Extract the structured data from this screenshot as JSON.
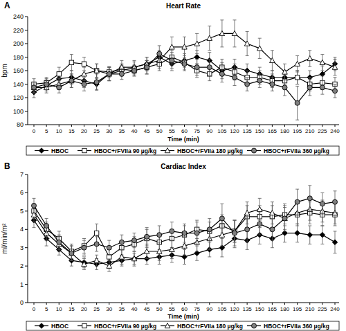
{
  "chart_data": [
    {
      "type": "line",
      "panel_label": "A",
      "title": "Heart Rate",
      "x_label": "Time (min)",
      "y_label": "bpm",
      "categories": [
        "0",
        "5",
        "10",
        "15",
        "20",
        "25",
        "30",
        "35",
        "40",
        "45",
        "50",
        "55",
        "60",
        "75",
        "90",
        "105",
        "120",
        "135",
        "150",
        "165",
        "180",
        "195",
        "210",
        "225",
        "240"
      ],
      "ylim": [
        80,
        240
      ],
      "yticks": [
        80,
        100,
        120,
        140,
        160,
        180,
        200,
        220,
        240
      ],
      "grid": false,
      "legend": "bottom",
      "series": [
        {
          "name": "HBOC",
          "color": "#000000",
          "marker": "diamond",
          "values": [
            128,
            138,
            148,
            150,
            145,
            140,
            155,
            160,
            165,
            170,
            180,
            170,
            175,
            180,
            175,
            160,
            165,
            160,
            155,
            150,
            150,
            150,
            150,
            155,
            170
          ],
          "errors": [
            8,
            8,
            10,
            10,
            10,
            8,
            10,
            8,
            8,
            10,
            10,
            10,
            10,
            10,
            12,
            12,
            12,
            10,
            10,
            10,
            10,
            10,
            10,
            12,
            10
          ]
        },
        {
          "name": "HBOC+rFVIIa 90 µg/kg",
          "color": "#ffffff",
          "marker": "square",
          "values": [
            140,
            142,
            155,
            172,
            170,
            160,
            158,
            162,
            160,
            165,
            170,
            180,
            172,
            160,
            155,
            165,
            158,
            150,
            150,
            145,
            145,
            150,
            140,
            142,
            140
          ],
          "errors": [
            8,
            8,
            10,
            12,
            10,
            10,
            8,
            8,
            8,
            10,
            10,
            10,
            10,
            10,
            10,
            12,
            12,
            10,
            10,
            10,
            10,
            10,
            10,
            10,
            10
          ]
        },
        {
          "name": "HBOC+rFVIIa 180 µg/kg",
          "color": "#ffffff",
          "marker": "triangle",
          "values": [
            135,
            135,
            140,
            145,
            155,
            160,
            155,
            165,
            165,
            170,
            175,
            195,
            195,
            200,
            208,
            215,
            215,
            200,
            193,
            175,
            158,
            170,
            178,
            172,
            165
          ],
          "errors": [
            8,
            8,
            8,
            10,
            10,
            10,
            10,
            10,
            10,
            10,
            12,
            15,
            15,
            15,
            18,
            20,
            20,
            18,
            15,
            15,
            12,
            12,
            12,
            12,
            12
          ]
        },
        {
          "name": "HBOC+rFVIIa 360 µg/kg",
          "color": "#808080",
          "marker": "circle",
          "values": [
            135,
            140,
            135,
            145,
            140,
            143,
            155,
            155,
            160,
            165,
            185,
            175,
            170,
            165,
            165,
            155,
            150,
            140,
            145,
            140,
            135,
            112,
            135,
            135,
            130
          ],
          "errors": [
            8,
            8,
            8,
            10,
            10,
            12,
            10,
            8,
            8,
            10,
            12,
            12,
            10,
            12,
            12,
            12,
            12,
            10,
            10,
            10,
            12,
            25,
            12,
            10,
            10
          ]
        }
      ]
    },
    {
      "type": "line",
      "panel_label": "B",
      "title": "Cardiac Index",
      "x_label": "Time (min)",
      "y_label": "ml/min/m²",
      "categories": [
        "0",
        "5",
        "10",
        "15",
        "20",
        "25",
        "30",
        "35",
        "40",
        "45",
        "50",
        "55",
        "60",
        "75",
        "90",
        "105",
        "120",
        "135",
        "150",
        "165",
        "180",
        "195",
        "210",
        "225",
        "240"
      ],
      "ylim": [
        0,
        7
      ],
      "yticks": [
        0,
        1,
        2,
        3,
        4,
        5,
        6,
        7
      ],
      "grid": false,
      "legend": "bottom",
      "series": [
        {
          "name": "HBOC",
          "color": "#000000",
          "marker": "diamond",
          "values": [
            4.5,
            3.5,
            2.9,
            2.3,
            2.2,
            2.1,
            2.2,
            2.3,
            2.4,
            2.4,
            2.5,
            2.6,
            2.5,
            2.7,
            2.9,
            3.0,
            3.5,
            3.4,
            3.7,
            3.5,
            3.8,
            3.8,
            3.7,
            3.7,
            3.3
          ],
          "errors": [
            0.4,
            0.4,
            0.3,
            0.3,
            0.3,
            0.3,
            0.3,
            0.3,
            0.3,
            0.3,
            0.4,
            0.4,
            0.4,
            0.4,
            0.4,
            0.5,
            0.5,
            0.5,
            0.5,
            0.5,
            0.5,
            0.5,
            0.5,
            0.5,
            0.6
          ]
        },
        {
          "name": "HBOC+rFVIIa 90 µg/kg",
          "color": "#ffffff",
          "marker": "square",
          "values": [
            5.0,
            4.0,
            3.5,
            2.8,
            3.1,
            3.8,
            2.5,
            3.0,
            3.2,
            3.5,
            3.3,
            3.5,
            3.7,
            4.0,
            3.9,
            4.2,
            3.9,
            4.7,
            4.7,
            4.7,
            4.8,
            4.8,
            4.9,
            4.8,
            4.8
          ],
          "errors": [
            0.4,
            0.4,
            0.4,
            0.4,
            0.4,
            0.5,
            0.4,
            0.4,
            0.4,
            0.5,
            0.5,
            0.5,
            0.5,
            0.5,
            0.5,
            0.6,
            0.6,
            0.6,
            0.6,
            0.6,
            0.6,
            0.6,
            0.6,
            0.6,
            0.6
          ]
        },
        {
          "name": "HBOC+rFVIIa 180 µg/kg",
          "color": "#ffffff",
          "marker": "triangle",
          "values": [
            4.8,
            3.8,
            3.2,
            2.7,
            2.1,
            2.3,
            2.0,
            2.5,
            2.4,
            2.8,
            2.8,
            2.9,
            3.1,
            3.3,
            3.5,
            3.7,
            3.9,
            4.9,
            5.1,
            4.9,
            4.6,
            4.9,
            5.1,
            5.0,
            4.9
          ],
          "errors": [
            0.4,
            0.4,
            0.4,
            0.4,
            0.3,
            0.3,
            0.3,
            0.4,
            0.4,
            0.4,
            0.5,
            0.5,
            0.5,
            0.5,
            0.6,
            0.6,
            0.6,
            0.6,
            0.6,
            0.6,
            0.6,
            0.6,
            0.6,
            0.6,
            0.6
          ]
        },
        {
          "name": "HBOC+rFVIIa 360 µg/kg",
          "color": "#808080",
          "marker": "circle",
          "values": [
            5.3,
            4.2,
            3.3,
            2.7,
            3.0,
            3.2,
            3.0,
            3.3,
            3.4,
            3.6,
            3.7,
            3.9,
            3.8,
            3.8,
            4.0,
            4.6,
            3.8,
            4.0,
            4.3,
            4.0,
            4.6,
            5.5,
            5.7,
            5.4,
            5.5
          ],
          "errors": [
            0.4,
            0.4,
            0.4,
            0.4,
            0.4,
            0.4,
            0.4,
            0.4,
            0.4,
            0.5,
            0.5,
            0.5,
            0.5,
            0.6,
            0.6,
            0.8,
            0.7,
            0.7,
            0.6,
            0.6,
            0.7,
            0.7,
            0.7,
            0.6,
            0.6
          ]
        }
      ]
    }
  ]
}
